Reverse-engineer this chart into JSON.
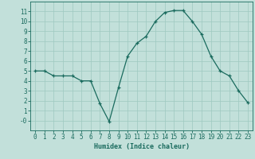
{
  "x": [
    0,
    1,
    2,
    3,
    4,
    5,
    6,
    7,
    8,
    9,
    10,
    11,
    12,
    13,
    14,
    15,
    16,
    17,
    18,
    19,
    20,
    21,
    22,
    23
  ],
  "y": [
    5.0,
    5.0,
    4.5,
    4.5,
    4.5,
    4.0,
    4.0,
    1.7,
    -0.1,
    3.3,
    6.5,
    7.8,
    8.5,
    10.0,
    10.9,
    11.1,
    11.1,
    10.0,
    8.7,
    6.5,
    5.0,
    4.5,
    3.0,
    1.8
  ],
  "line_color": "#1a6b5e",
  "marker": "+",
  "marker_size": 3.5,
  "marker_linewidth": 0.9,
  "line_width": 0.9,
  "bg_color": "#c2e0da",
  "grid_color": "#9ec8c0",
  "xlabel": "Humidex (Indice chaleur)",
  "xlabel_fontsize": 6,
  "tick_fontsize": 5.5,
  "ylim": [
    -1,
    12
  ],
  "xlim": [
    -0.5,
    23.5
  ],
  "yticks": [
    0,
    1,
    2,
    3,
    4,
    5,
    6,
    7,
    8,
    9,
    10,
    11
  ],
  "ytick_labels": [
    "-0",
    "1",
    "2",
    "3",
    "4",
    "5",
    "6",
    "7",
    "8",
    "9",
    "10",
    "11"
  ],
  "xticks": [
    0,
    1,
    2,
    3,
    4,
    5,
    6,
    7,
    8,
    9,
    10,
    11,
    12,
    13,
    14,
    15,
    16,
    17,
    18,
    19,
    20,
    21,
    22,
    23
  ]
}
